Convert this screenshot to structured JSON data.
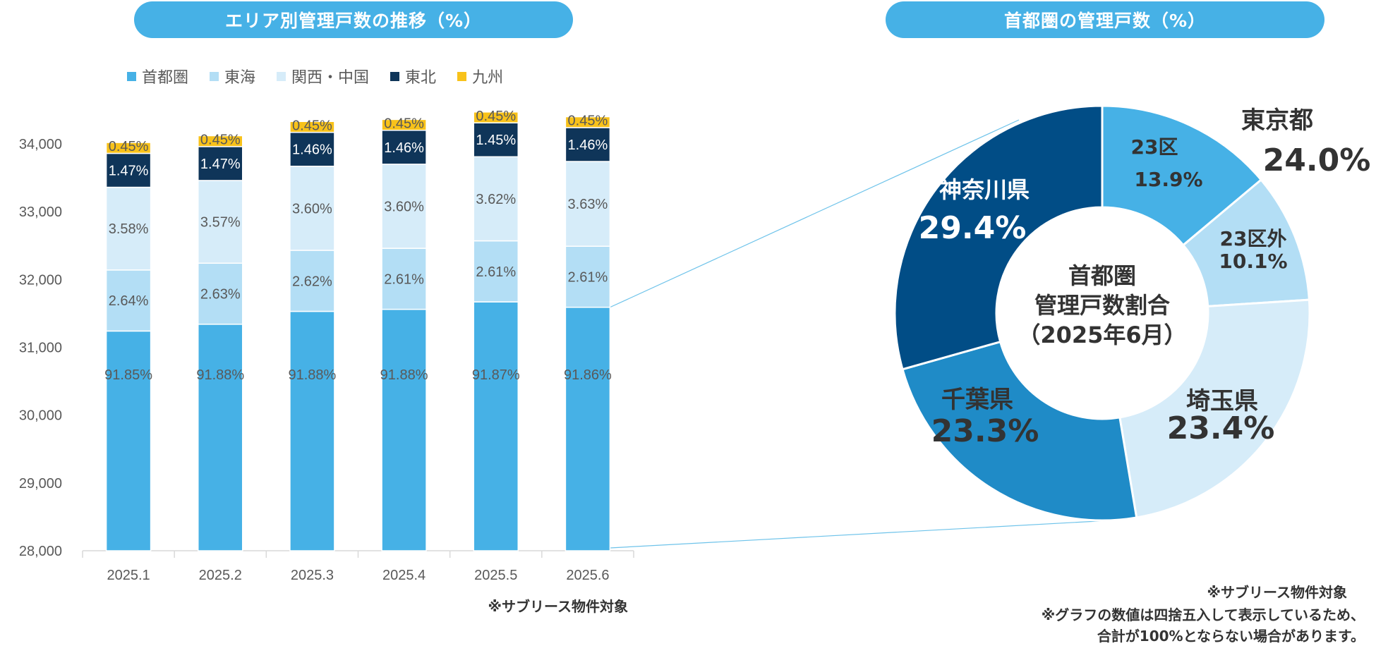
{
  "left_chart_title": "エリア別管理戸数の推移（%）",
  "right_chart_title": "首都圏の管理戸数（%）",
  "notes": {
    "left": "※サブリース物件対象",
    "right_1": "※サブリース物件対象",
    "right_2": "※グラフの数値は四捨五入して表示しているため、",
    "right_3": "合計が100%とならない場合があります。"
  },
  "chart_data": [
    {
      "type": "bar",
      "stacked": true,
      "title": "エリア別管理戸数の推移（%）",
      "categories": [
        "2025.1",
        "2025.2",
        "2025.3",
        "2025.4",
        "2025.5",
        "2025.6"
      ],
      "ylim": [
        28000,
        34000
      ],
      "yticks": [
        28000,
        29000,
        30000,
        31000,
        32000,
        33000,
        34000
      ],
      "ytick_labels": [
        "28,000",
        "29,000",
        "30,000",
        "31,000",
        "32,000",
        "33,000",
        "34,000"
      ],
      "legend_position": "top",
      "grid": false,
      "series": [
        {
          "name": "首都圏",
          "color": "#46b1e6",
          "label_color": "#595959",
          "top_values": [
            31240,
            31340,
            31530,
            31560,
            31670,
            31590
          ],
          "labels": [
            "91.85%",
            "91.88%",
            "91.88%",
            "91.88%",
            "91.87%",
            "91.86%"
          ]
        },
        {
          "name": "東海",
          "color": "#b3def5",
          "label_color": "#595959",
          "top_values": [
            32140,
            32240,
            32430,
            32460,
            32570,
            32490
          ],
          "labels": [
            "2.64%",
            "2.63%",
            "2.62%",
            "2.61%",
            "2.61%",
            "2.61%"
          ]
        },
        {
          "name": "関西・中国",
          "color": "#d6ecf9",
          "label_color": "#595959",
          "top_values": [
            33360,
            33460,
            33670,
            33700,
            33810,
            33740
          ],
          "labels": [
            "3.58%",
            "3.57%",
            "3.60%",
            "3.60%",
            "3.62%",
            "3.63%"
          ]
        },
        {
          "name": "東北",
          "color": "#0f3559",
          "label_color": "#ffffff",
          "top_values": [
            33860,
            33960,
            34170,
            34200,
            34310,
            34240
          ],
          "labels": [
            "1.47%",
            "1.47%",
            "1.46%",
            "1.46%",
            "1.45%",
            "1.46%"
          ]
        },
        {
          "name": "九州",
          "color": "#f8c21a",
          "label_color": "#595959",
          "top_values": [
            34020,
            34120,
            34330,
            34360,
            34470,
            34400
          ],
          "labels": [
            "0.45%",
            "0.45%",
            "0.45%",
            "0.45%",
            "0.45%",
            "0.45%"
          ]
        }
      ]
    },
    {
      "type": "pie",
      "donut": true,
      "title": "首都圏の管理戸数（%）",
      "center_label": [
        "首都圏",
        "管理戸数割合",
        "（2025年6月）"
      ],
      "slices": [
        {
          "name": "23区",
          "value": 13.9,
          "label": "13.9%",
          "color": "#46b1e6",
          "text_color": "#333333"
        },
        {
          "name": "23区外",
          "value": 10.1,
          "label": "10.1%",
          "color": "#b3def5",
          "text_color": "#333333"
        },
        {
          "name": "埼玉県",
          "value": 23.4,
          "label": "23.4%",
          "color": "#d6ecf9",
          "text_color": "#333333"
        },
        {
          "name": "千葉県",
          "value": 23.3,
          "label": "23.3%",
          "color": "#1f8bc7",
          "text_color": "#333333"
        },
        {
          "name": "神奈川県",
          "value": 29.4,
          "label": "29.4%",
          "color": "#014d86",
          "text_color": "#ffffff"
        }
      ],
      "group_label": {
        "name": "東京都",
        "value": "24.0%"
      }
    }
  ]
}
